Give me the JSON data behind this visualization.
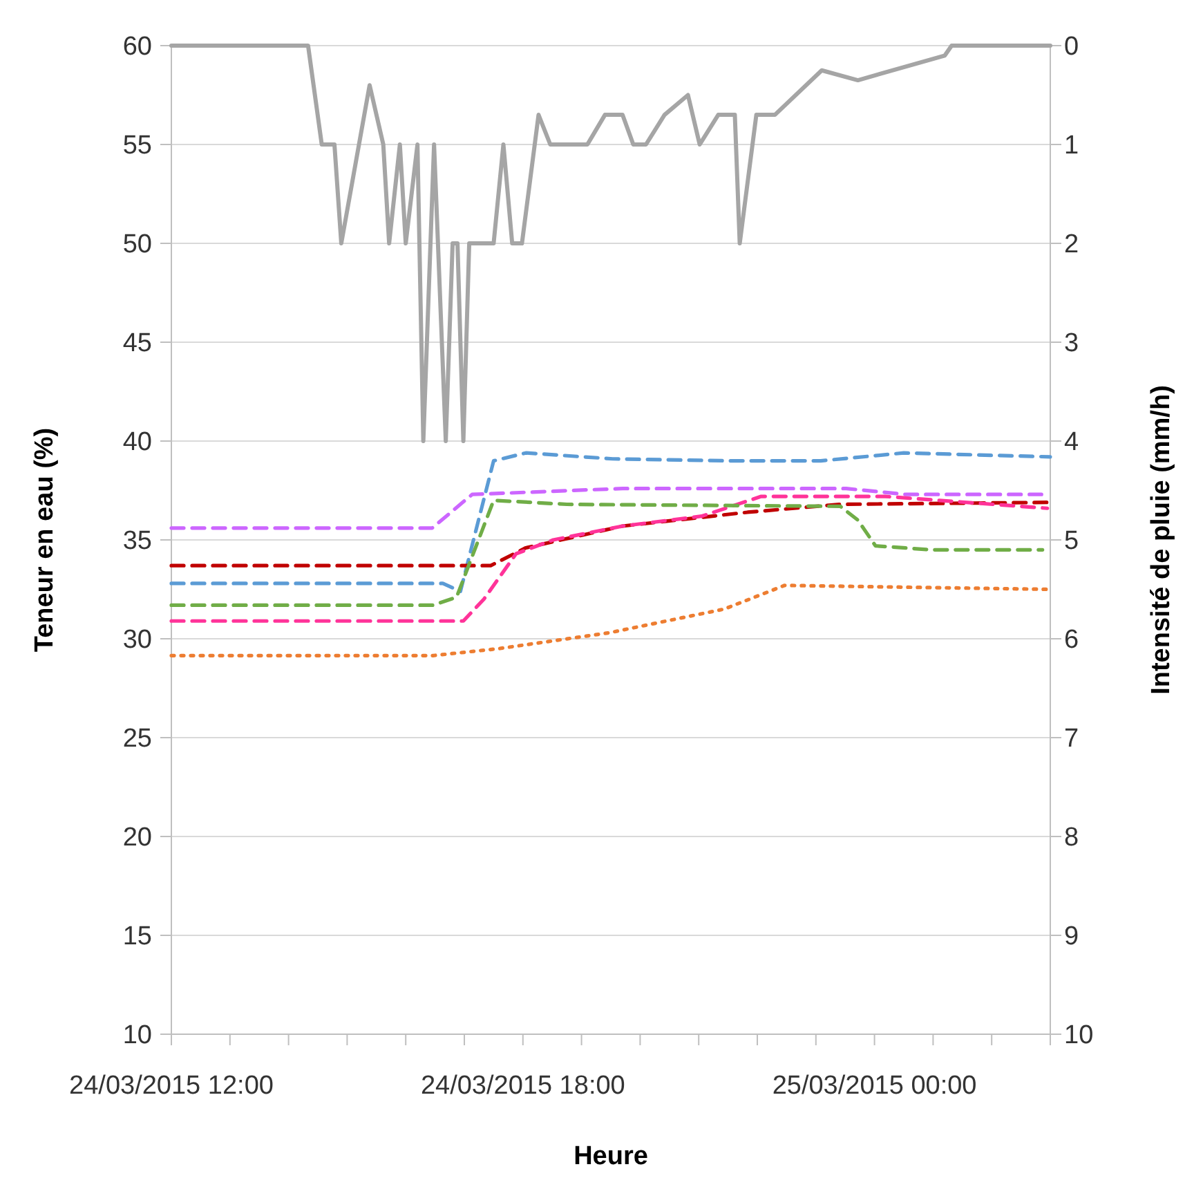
{
  "chart_data": {
    "type": "line",
    "xlabel": "Heure",
    "ylabel": "Teneur en eau (%)",
    "y2label": "Intensité de pluie (mm/h)",
    "xlim": [
      "2015-03-24T12:00",
      "2015-03-25T03:00"
    ],
    "xticks": [
      {
        "value": "2015-03-24T12:00",
        "label": "24/03/2015 12:00"
      },
      {
        "value": "2015-03-24T13:00",
        "label": null
      },
      {
        "value": "2015-03-24T14:00",
        "label": null
      },
      {
        "value": "2015-03-24T15:00",
        "label": null
      },
      {
        "value": "2015-03-24T16:00",
        "label": null
      },
      {
        "value": "2015-03-24T17:00",
        "label": null
      },
      {
        "value": "2015-03-24T18:00",
        "label": "24/03/2015 18:00"
      },
      {
        "value": "2015-03-24T19:00",
        "label": null
      },
      {
        "value": "2015-03-24T20:00",
        "label": null
      },
      {
        "value": "2015-03-24T21:00",
        "label": null
      },
      {
        "value": "2015-03-24T22:00",
        "label": null
      },
      {
        "value": "2015-03-24T23:00",
        "label": null
      },
      {
        "value": "2015-03-25T00:00",
        "label": "25/03/2015 00:00"
      },
      {
        "value": "2015-03-25T01:00",
        "label": null
      },
      {
        "value": "2015-03-25T02:00",
        "label": null
      },
      {
        "value": "2015-03-25T03:00",
        "label": null
      }
    ],
    "ylim": [
      10,
      60
    ],
    "yticks": [
      10,
      15,
      20,
      25,
      30,
      35,
      40,
      45,
      50,
      55,
      60
    ],
    "y2lim": [
      10,
      0
    ],
    "y2ticks": [
      0,
      1,
      2,
      3,
      4,
      5,
      6,
      7,
      8,
      9,
      10
    ],
    "grid": "y",
    "marker": "none",
    "series": [
      {
        "color": "#a5a5a5",
        "axis": "y2",
        "line_style": "solid",
        "x": [
          "2015-03-24T12:00",
          "2015-03-24T14:20",
          "2015-03-24T14:34",
          "2015-03-24T14:47",
          "2015-03-24T14:54",
          "2015-03-24T15:23",
          "2015-03-24T15:37",
          "2015-03-24T15:43",
          "2015-03-24T15:54",
          "2015-03-24T16:00",
          "2015-03-24T16:12",
          "2015-03-24T16:18",
          "2015-03-24T16:29",
          "2015-03-24T16:41",
          "2015-03-24T16:48",
          "2015-03-24T16:53",
          "2015-03-24T16:59",
          "2015-03-24T17:05",
          "2015-03-24T17:30",
          "2015-03-24T17:40",
          "2015-03-24T17:49",
          "2015-03-24T17:59",
          "2015-03-24T18:16",
          "2015-03-24T18:28",
          "2015-03-24T19:06",
          "2015-03-24T19:24",
          "2015-03-24T19:42",
          "2015-03-24T19:53",
          "2015-03-24T20:06",
          "2015-03-24T20:25",
          "2015-03-24T20:49",
          "2015-03-24T21:01",
          "2015-03-24T21:20",
          "2015-03-24T21:37",
          "2015-03-24T21:42",
          "2015-03-24T21:59",
          "2015-03-24T22:18",
          "2015-03-24T23:06",
          "2015-03-24T23:43",
          "2015-03-25T01:12",
          "2015-03-25T01:19",
          "2015-03-25T03:00"
        ],
        "values": [
          0,
          0,
          1,
          1,
          2,
          0.4,
          1,
          2,
          1,
          2,
          1,
          4,
          1,
          4,
          2,
          2,
          4,
          2,
          2,
          1,
          2,
          2,
          0.7,
          1,
          1,
          0.7,
          0.7,
          1,
          1,
          0.7,
          0.5,
          1,
          0.7,
          0.7,
          2,
          0.7,
          0.7,
          0.25,
          0.35,
          0.1,
          0,
          0
        ]
      },
      {
        "color": "#5b9bd5",
        "line_style": "dashed",
        "x": [
          "2015-03-24T12:00",
          "2015-03-24T16:38",
          "2015-03-24T16:56",
          "2015-03-24T17:30",
          "2015-03-24T18:03",
          "2015-03-24T19:32",
          "2015-03-24T21:35",
          "2015-03-24T23:05",
          "2015-03-25T00:30",
          "2015-03-25T03:00"
        ],
        "values": [
          32.8,
          32.8,
          32.4,
          39.0,
          39.4,
          39.1,
          39.0,
          39.0,
          39.4,
          39.2
        ]
      },
      {
        "color": "#cc66ff",
        "line_style": "dashed",
        "x": [
          "2015-03-24T12:00",
          "2015-03-24T16:27",
          "2015-03-24T17:08",
          "2015-03-24T19:42",
          "2015-03-24T23:31",
          "2015-03-25T00:32",
          "2015-03-25T02:51"
        ],
        "values": [
          35.6,
          35.6,
          37.3,
          37.6,
          37.6,
          37.3,
          37.3
        ]
      },
      {
        "color": "#c00000",
        "line_style": "dashed",
        "x": [
          "2015-03-24T12:00",
          "2015-03-24T17:27",
          "2015-03-24T18:03",
          "2015-03-24T19:42",
          "2015-03-24T21:50",
          "2015-03-24T23:25",
          "2015-03-25T03:00"
        ],
        "values": [
          33.7,
          33.7,
          34.6,
          35.7,
          36.4,
          36.8,
          36.9
        ]
      },
      {
        "color": "#ff3399",
        "line_style": "dashed",
        "x": [
          "2015-03-24T12:00",
          "2015-03-24T16:59",
          "2015-03-24T17:20",
          "2015-03-24T17:53",
          "2015-03-24T18:31",
          "2015-03-24T19:42",
          "2015-03-24T21:03",
          "2015-03-24T22:04",
          "2015-03-25T00:11",
          "2015-03-25T02:57"
        ],
        "values": [
          30.9,
          30.9,
          32.0,
          34.3,
          35.0,
          35.7,
          36.2,
          37.2,
          37.2,
          36.6
        ]
      },
      {
        "color": "#70ad47",
        "line_style": "dashed",
        "x": [
          "2015-03-24T12:00",
          "2015-03-24T16:28",
          "2015-03-24T16:52",
          "2015-03-24T17:30",
          "2015-03-24T18:45",
          "2015-03-24T23:25",
          "2015-03-24T23:43",
          "2015-03-25T00:01",
          "2015-03-25T00:58",
          "2015-03-25T02:52"
        ],
        "values": [
          31.7,
          31.7,
          32.1,
          37.0,
          36.8,
          36.7,
          36.0,
          34.7,
          34.5,
          34.5
        ]
      },
      {
        "color": "#ed7d31",
        "line_style": "dotted",
        "x": [
          "2015-03-24T12:00",
          "2015-03-24T16:28",
          "2015-03-24T17:35",
          "2015-03-24T19:28",
          "2015-03-24T21:26",
          "2015-03-24T22:28",
          "2015-03-25T03:00"
        ],
        "values": [
          29.15,
          29.15,
          29.5,
          30.3,
          31.5,
          32.7,
          32.5
        ]
      }
    ]
  }
}
